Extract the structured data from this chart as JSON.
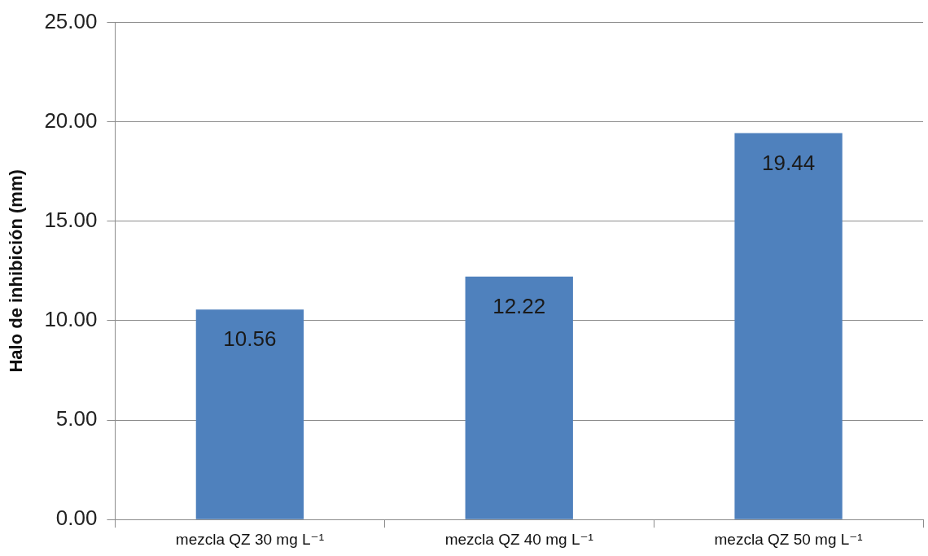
{
  "chart_data": {
    "type": "bar",
    "ylabel": "Halo de inhibición (mm)",
    "categories": [
      "mezcla QZ 30 mg L⁻¹",
      "mezcla QZ 40 mg L⁻¹",
      "mezcla QZ 50 mg L⁻¹"
    ],
    "values": [
      10.56,
      12.22,
      19.44
    ],
    "color": "#4f81bd",
    "ylim": [
      0,
      25
    ],
    "yticks": [
      {
        "value": 0,
        "label": "0.00"
      },
      {
        "value": 5,
        "label": "5.00"
      },
      {
        "value": 10,
        "label": "10.00"
      },
      {
        "value": 15,
        "label": "15.00"
      },
      {
        "value": 20,
        "label": "20.00"
      },
      {
        "value": 25,
        "label": "25.00"
      }
    ],
    "grid": "y",
    "data_labels": true,
    "legend": false
  }
}
